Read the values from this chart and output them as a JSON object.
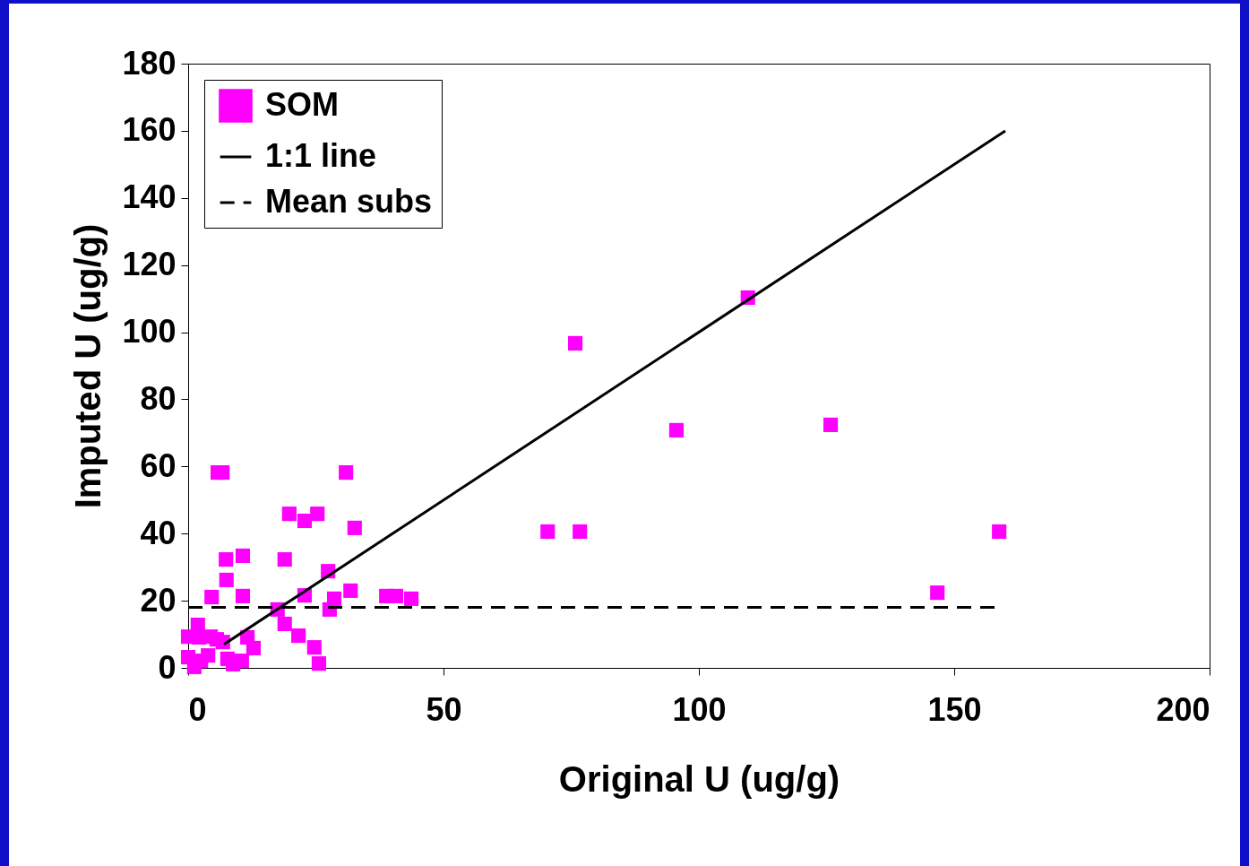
{
  "chart_data": {
    "type": "scatter",
    "xlabel": "Original U (ug/g)",
    "ylabel": "Imputed U (ug/g)",
    "xlim": [
      0,
      200
    ],
    "xticks": [
      0,
      50,
      100,
      150,
      200
    ],
    "ylim": [
      0,
      180
    ],
    "yticks": [
      0,
      20,
      40,
      60,
      80,
      100,
      120,
      140,
      160,
      180
    ],
    "grid": false,
    "legend": "top left",
    "series": [
      {
        "name": "SOM",
        "color": "#ff00ff",
        "marker": "square",
        "x": [
          5.8,
          6.7,
          30.9,
          19.8,
          22.8,
          25.3,
          32.6,
          7.4,
          10.7,
          18.9,
          7.5,
          27.4,
          4.6,
          10.7,
          22.8,
          31.8,
          28.6,
          27.7,
          17.5,
          38.8,
          40.7,
          43.7,
          18.9,
          21.6,
          24.7,
          25.6,
          2.1,
          1.9,
          4.4,
          5.6,
          6.8,
          11.6,
          12.8,
          8.8,
          10.5,
          7.7,
          3.9,
          0,
          0,
          1.2,
          2.5,
          70.4,
          76.7,
          75.8,
          95.6,
          109.6,
          125.8,
          146.7,
          158.8
        ],
        "values": [
          58.2,
          58.2,
          58.2,
          45.9,
          43.8,
          45.9,
          41.7,
          32.3,
          33.4,
          32.3,
          26.2,
          28.8,
          21.1,
          21.4,
          21.6,
          23.0,
          20.6,
          17.4,
          17.4,
          21.4,
          21.4,
          20.6,
          13.1,
          9.6,
          6.1,
          1.3,
          9.1,
          12.8,
          9.3,
          8.5,
          7.7,
          9.1,
          5.9,
          1.1,
          2.1,
          2.7,
          3.7,
          3.2,
          9.3,
          0.3,
          2.1,
          40.6,
          40.6,
          96.7,
          70.8,
          110.3,
          72.4,
          22.4,
          40.6
        ]
      },
      {
        "name": "1:1 line",
        "type": "line",
        "line_style": "solid",
        "color": "#000000",
        "x": [
          7,
          160
        ],
        "values": [
          7,
          160
        ]
      },
      {
        "name": "Mean subs",
        "type": "line",
        "line_style": "dashed",
        "color": "#000000",
        "x": [
          0,
          158
        ],
        "values": [
          18,
          18
        ]
      }
    ]
  }
}
